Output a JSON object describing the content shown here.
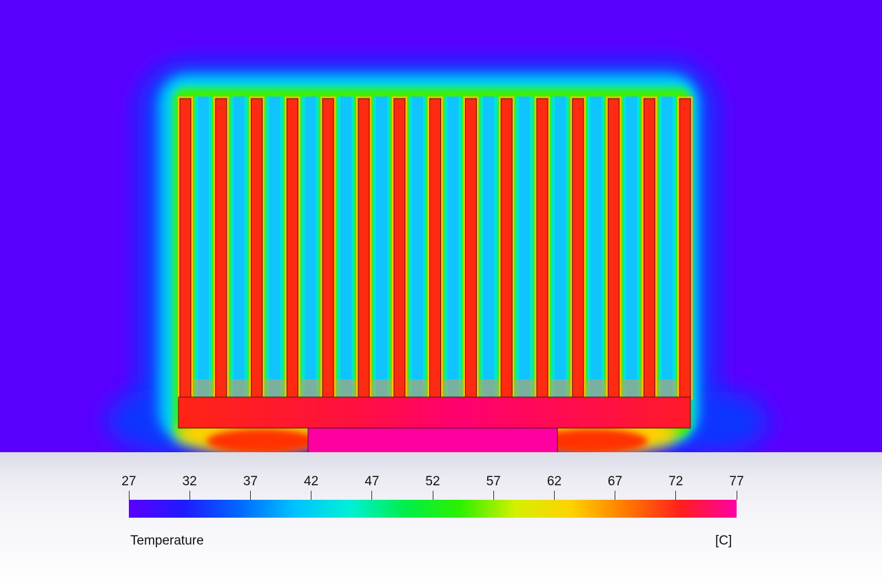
{
  "legend": {
    "title": "Temperature",
    "unit": "[C]",
    "min": 27,
    "max": 77,
    "ticks": [
      "27",
      "32",
      "37",
      "42",
      "47",
      "52",
      "57",
      "62",
      "67",
      "72",
      "77"
    ],
    "colormap": [
      "#5a00ff",
      "#1f1bff",
      "#0068ff",
      "#00c2ff",
      "#00f0d6",
      "#00ee4a",
      "#2cf000",
      "#d4f000",
      "#ffd200",
      "#ff7a00",
      "#ff1e1e",
      "#ff00a6"
    ]
  },
  "simulation": {
    "ambient_color": "#5a00ff",
    "fin_count": 15,
    "fin_temperature_color": "#ff2a12",
    "base_temperature_color": "#ff0d5a",
    "heat_source_color": "#ff00a0"
  }
}
